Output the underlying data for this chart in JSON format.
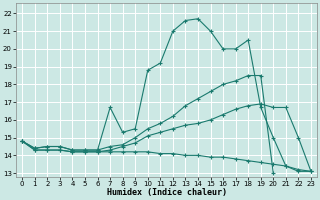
{
  "xlabel": "Humidex (Indice chaleur)",
  "bg_color": "#cce8e4",
  "grid_color": "#b0d8d2",
  "line_color": "#1a7a6e",
  "xlim": [
    -0.5,
    23.5
  ],
  "ylim": [
    12.8,
    22.6
  ],
  "yticks": [
    13,
    14,
    15,
    16,
    17,
    18,
    19,
    20,
    21,
    22
  ],
  "xticks": [
    0,
    1,
    2,
    3,
    4,
    5,
    6,
    7,
    8,
    9,
    10,
    11,
    12,
    13,
    14,
    15,
    16,
    17,
    18,
    19,
    20,
    21,
    22,
    23
  ],
  "series": [
    {
      "x": [
        0,
        1,
        2,
        3,
        4,
        5,
        6,
        7,
        8,
        9,
        10,
        11,
        12,
        13,
        14,
        15,
        16,
        17,
        18,
        19,
        20,
        21,
        22,
        23
      ],
      "y": [
        14.8,
        14.4,
        14.5,
        14.5,
        14.3,
        14.3,
        14.3,
        16.7,
        15.3,
        15.5,
        18.8,
        19.2,
        21.0,
        21.6,
        21.7,
        21.0,
        20.0,
        20.0,
        20.5,
        16.7,
        15.0,
        13.4,
        13.1,
        13.1
      ]
    },
    {
      "x": [
        0,
        1,
        2,
        3,
        4,
        5,
        6,
        7,
        8,
        9,
        10,
        11,
        12,
        13,
        14,
        15,
        16,
        17,
        18,
        19,
        20
      ],
      "y": [
        14.8,
        14.4,
        14.5,
        14.5,
        14.3,
        14.3,
        14.3,
        14.5,
        14.6,
        15.0,
        15.5,
        15.8,
        16.2,
        16.8,
        17.2,
        17.6,
        18.0,
        18.2,
        18.5,
        18.5,
        13.0
      ]
    },
    {
      "x": [
        0,
        1,
        2,
        3,
        4,
        5,
        6,
        7,
        8,
        9,
        10,
        11,
        12,
        13,
        14,
        15,
        16,
        17,
        18,
        19,
        20,
        21,
        22,
        23
      ],
      "y": [
        14.8,
        14.3,
        14.3,
        14.3,
        14.2,
        14.2,
        14.2,
        14.3,
        14.5,
        14.7,
        15.1,
        15.3,
        15.5,
        15.7,
        15.8,
        16.0,
        16.3,
        16.6,
        16.8,
        16.9,
        16.7,
        16.7,
        15.0,
        13.1
      ]
    },
    {
      "x": [
        0,
        1,
        2,
        3,
        4,
        5,
        6,
        7,
        8,
        9,
        10,
        11,
        12,
        13,
        14,
        15,
        16,
        17,
        18,
        19,
        20,
        21,
        22,
        23
      ],
      "y": [
        14.8,
        14.3,
        14.3,
        14.3,
        14.2,
        14.2,
        14.2,
        14.2,
        14.2,
        14.2,
        14.2,
        14.1,
        14.1,
        14.0,
        14.0,
        13.9,
        13.9,
        13.8,
        13.7,
        13.6,
        13.5,
        13.4,
        13.2,
        13.1
      ]
    }
  ]
}
